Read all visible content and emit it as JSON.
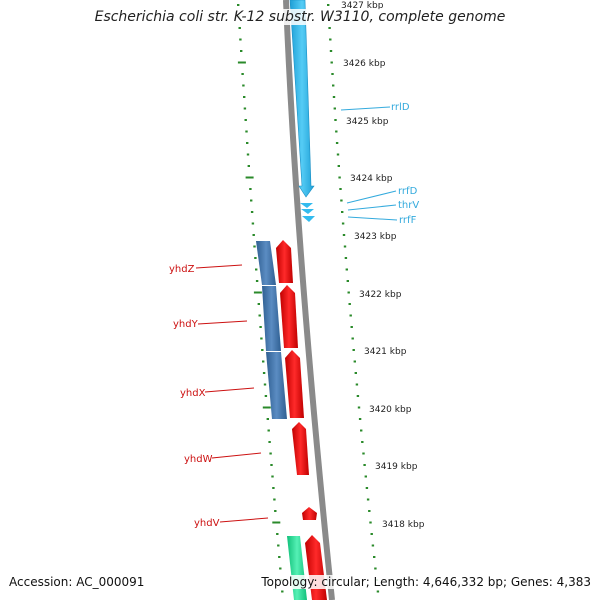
{
  "title": "Escherichia coli str. K-12 substr. W3110, complete genome",
  "accession_text": "Accession: AC_000091",
  "topology_text": "Topology: circular; Length: 4,646,332 bp; Genes: 4,383",
  "colors": {
    "backbone": "#8a8a8a",
    "rna": "#33bbee",
    "gene_forward": "#ee1111",
    "gene_reverse": "#3a6ea5",
    "green_feature": "#22dd99",
    "ticks": "#2a8a2a"
  },
  "scale": {
    "unit": "kbp",
    "labels": [
      "3427 kbp",
      "3426 kbp",
      "3425 kbp",
      "3424 kbp",
      "3423 kbp",
      "3422 kbp",
      "3421 kbp",
      "3420 kbp",
      "3419 kbp",
      "3418 kbp"
    ]
  },
  "gene_labels_left": [
    "yhdZ",
    "yhdY",
    "yhdX",
    "yhdW",
    "yhdV"
  ],
  "gene_labels_right": [
    "rrlD",
    "rrfD",
    "thrV",
    "rrfF"
  ]
}
